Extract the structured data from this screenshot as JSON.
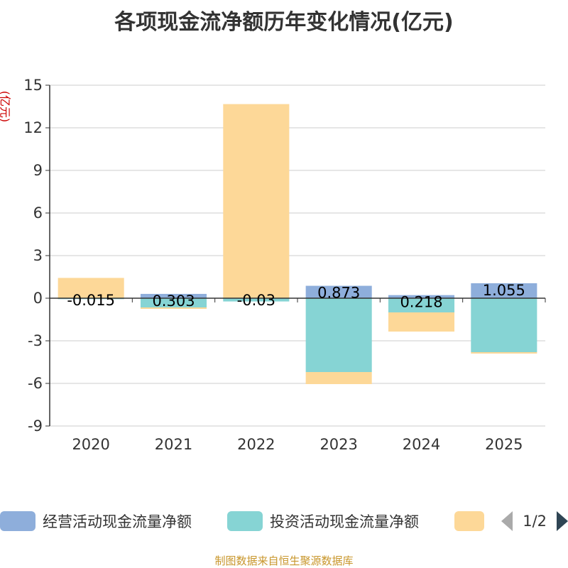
{
  "title": "各项现金流净额历年变化情况(亿元)",
  "footer": "制图数据来自恒生聚源数据库",
  "legend_pager": "1/2",
  "chart_data": {
    "type": "bar",
    "stacked": true,
    "title": "各项现金流净额历年变化情况(亿元)",
    "ylabel": "(亿元)",
    "xlabel": "",
    "ylim": [
      -9,
      15
    ],
    "yticks": [
      15,
      12,
      9,
      6,
      3,
      0,
      -3,
      -6,
      -9
    ],
    "ytick_labels": [
      "15",
      "12",
      "9",
      "6",
      "3",
      "0",
      "-3",
      "-6",
      "-9"
    ],
    "grid": true,
    "legend_position": "bottom",
    "categories": [
      "2020",
      "2021",
      "2022",
      "2023",
      "2024",
      "2025"
    ],
    "series": [
      {
        "name": "经营活动现金流量净额",
        "color": "#8eaedb",
        "values": [
          -0.015,
          0.303,
          -0.03,
          0.873,
          0.218,
          1.055
        ],
        "labels": [
          "-0.015",
          "0.303",
          "-0.03",
          "0.873",
          "0.218",
          "1.055"
        ]
      },
      {
        "name": "投资活动现金流量净额",
        "color": "#86d4d4",
        "values": [
          -0.05,
          -0.65,
          -0.2,
          -5.2,
          -1.0,
          -3.8
        ],
        "labels": []
      },
      {
        "name": "",
        "color": "#fdd898",
        "values": [
          1.43,
          -0.1,
          13.67,
          -0.85,
          -1.35,
          -0.1
        ],
        "labels": []
      }
    ]
  }
}
